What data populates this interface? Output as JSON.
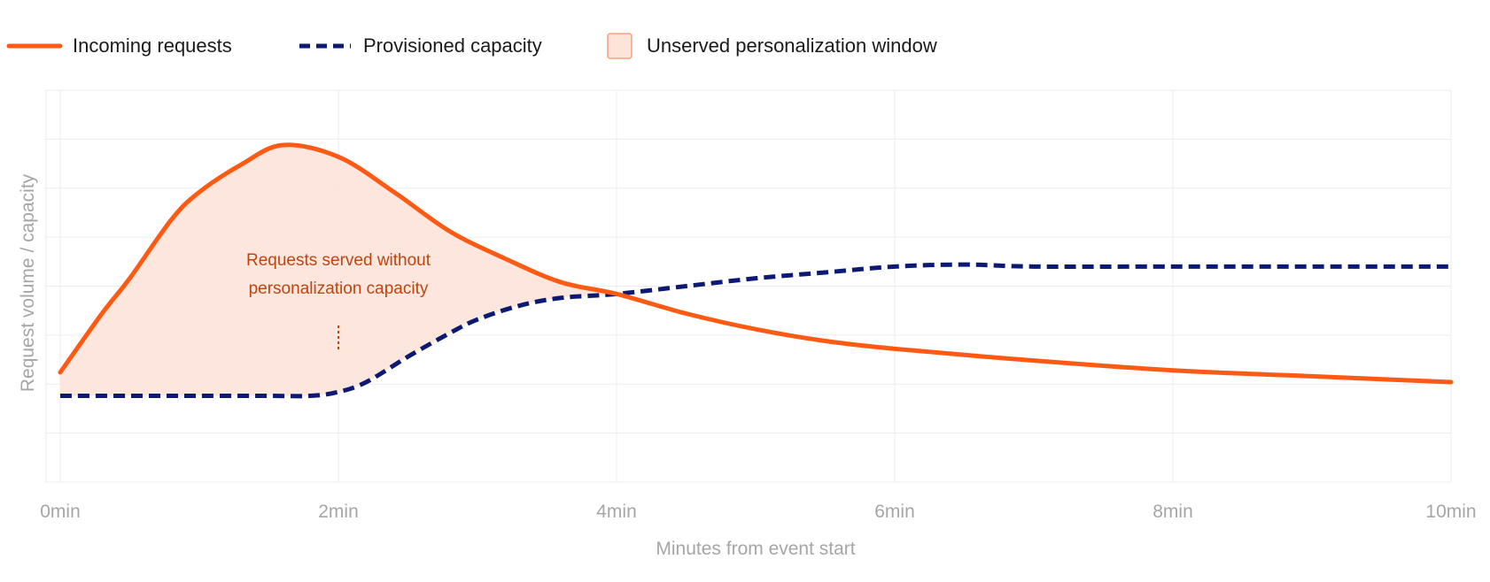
{
  "chart_data": {
    "type": "line",
    "xlabel": "Minutes from event start",
    "ylabel": "Request volume / capacity",
    "x_tick_labels": [
      "0min",
      "2min",
      "4min",
      "6min",
      "8min",
      "10min"
    ],
    "xlim": [
      0,
      10
    ],
    "ylim": [
      0,
      100
    ],
    "grid": true,
    "legend_position": "top-left",
    "legend": [
      {
        "label": "Incoming requests",
        "style": "solid-line",
        "color": "#ff5a14"
      },
      {
        "label": "Provisioned capacity",
        "style": "dashed-line",
        "color": "#0c1a73"
      },
      {
        "label": "Unserved personalization window",
        "style": "shaded-area",
        "color": "#fde3d9"
      }
    ],
    "series": [
      {
        "name": "Incoming requests",
        "color": "#ff5a14",
        "x": [
          0,
          0.3,
          0.5,
          0.8,
          1.0,
          1.3,
          1.6,
          2.0,
          2.4,
          2.8,
          3.2,
          3.6,
          4.0,
          4.5,
          5.0,
          5.5,
          6.0,
          7.0,
          8.0,
          9.0,
          10.0
        ],
        "y": [
          28,
          43,
          52,
          67,
          74,
          81,
          86,
          83,
          74,
          64,
          57,
          51,
          48,
          43,
          39,
          36,
          34,
          31,
          28.5,
          27,
          25.5
        ]
      },
      {
        "name": "Provisioned capacity",
        "color": "#0c1a73",
        "x": [
          0,
          0.5,
          1.0,
          1.5,
          1.8,
          2.0,
          2.2,
          2.5,
          2.8,
          3.0,
          3.3,
          3.6,
          4.0,
          4.5,
          5.0,
          5.5,
          6.0,
          6.5,
          7.0,
          8.0,
          9.0,
          10.0
        ],
        "y": [
          22,
          22,
          22,
          22,
          22,
          23,
          25.5,
          32,
          38,
          41.5,
          45,
          47,
          48,
          50,
          52,
          53.5,
          55,
          55.5,
          55,
          55,
          55,
          55
        ]
      }
    ],
    "shaded_region": {
      "label": "Unserved personalization window",
      "color": "#fde3d9",
      "x_range": [
        0,
        4
      ],
      "between": [
        "Incoming requests",
        "Provisioned capacity"
      ]
    },
    "annotations": [
      {
        "lines": [
          "Requests served without",
          "personalization capacity"
        ],
        "x": 2,
        "y": 60,
        "color": "#c0440d"
      }
    ]
  }
}
